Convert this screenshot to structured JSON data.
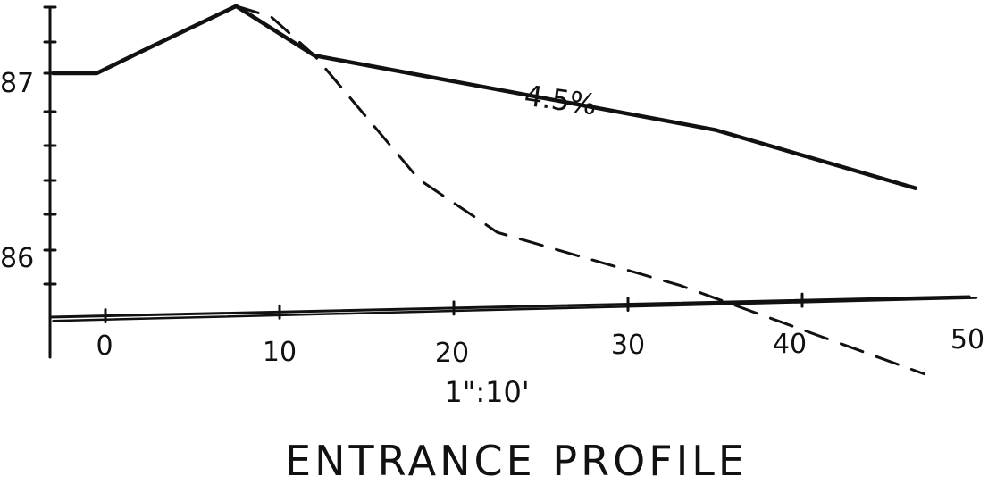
{
  "chart_data": {
    "type": "line",
    "title": "ENTRANCE PROFILE",
    "xlabel": "1\":10'",
    "ylabel": "",
    "xlim": [
      -3,
      50
    ],
    "ylim": [
      85.6,
      88.4
    ],
    "x_ticks": [
      "0",
      "10",
      "20",
      "30",
      "40",
      "50"
    ],
    "y_ticks": [
      "87",
      "86"
    ],
    "series": [
      {
        "name": "",
        "style": "solid",
        "points": [
          [
            -3,
            87.0
          ],
          [
            -0.5,
            87.0
          ],
          [
            2,
            87.12
          ],
          [
            7.5,
            87.38
          ],
          [
            12,
            87.1
          ],
          [
            35,
            86.68
          ],
          [
            46.5,
            86.35
          ]
        ]
      },
      {
        "name": "",
        "style": "dashed",
        "points": [
          [
            7.5,
            87.38
          ],
          [
            9.5,
            87.32
          ],
          [
            12,
            87.1
          ],
          [
            18,
            86.4
          ],
          [
            22.5,
            86.1
          ],
          [
            33,
            85.8
          ],
          [
            47,
            85.3
          ]
        ]
      },
      {
        "name": "",
        "style": "solid-thin",
        "points": [
          [
            -3,
            85.6
          ],
          [
            50,
            85.73
          ]
        ]
      }
    ],
    "annotations": [
      {
        "text": "4.5%",
        "x": 29,
        "y": 87.0
      }
    ],
    "grid": false,
    "colors": {
      "ink": "#111111",
      "paper": "#ffffff"
    }
  }
}
